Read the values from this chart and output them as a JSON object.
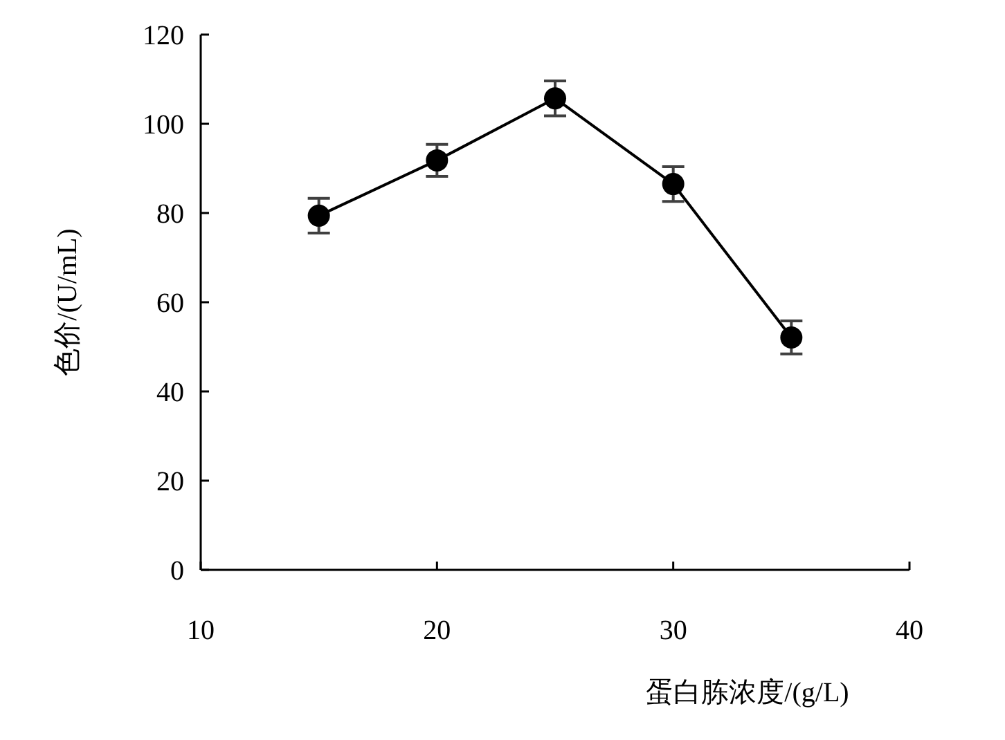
{
  "chart_data": {
    "type": "line",
    "xlabel": "蛋白胨浓度/(g/L)",
    "ylabel": "色价/(U/mL)",
    "x": [
      15,
      20,
      25,
      30,
      35
    ],
    "series": [
      {
        "color": "#000000",
        "values": [
          79.4,
          91.8,
          105.7,
          86.5,
          52.1
        ],
        "errors": [
          3.9,
          3.6,
          3.9,
          3.9,
          3.7
        ]
      }
    ],
    "xlim": [
      10,
      40
    ],
    "xticks": [
      10,
      20,
      30,
      40
    ],
    "ylim": [
      0,
      120
    ],
    "yticks": [
      0,
      20,
      40,
      60,
      80,
      100,
      120
    ],
    "marker": "circle",
    "line_style": "solid",
    "grid": false
  }
}
